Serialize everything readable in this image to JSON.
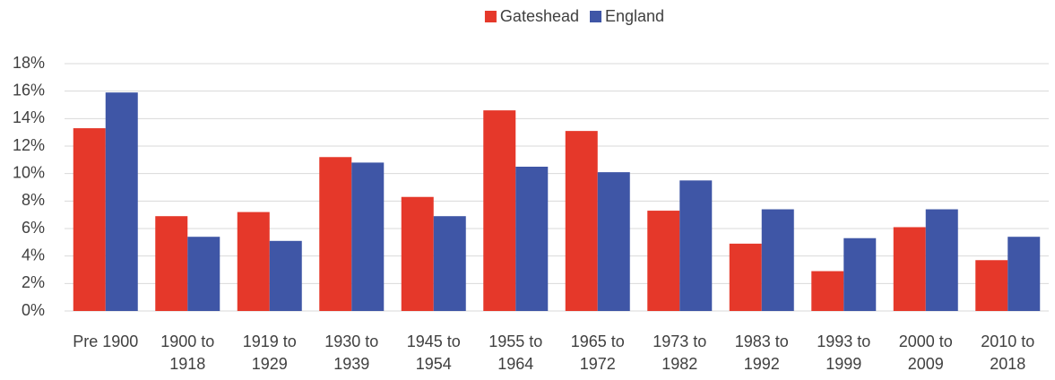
{
  "chart_data": {
    "type": "bar",
    "categories": [
      "Pre 1900",
      "1900 to 1918",
      "1919 to 1929",
      "1930 to 1939",
      "1945 to 1954",
      "1955 to 1964",
      "1965 to 1972",
      "1973 to 1982",
      "1983 to 1992",
      "1993 to 1999",
      "2000 to 2009",
      "2010 to 2018"
    ],
    "series": [
      {
        "name": "Gateshead",
        "color": "#e5382a",
        "values": [
          13.3,
          6.9,
          7.2,
          11.2,
          8.3,
          14.6,
          13.1,
          7.3,
          4.9,
          2.9,
          6.1,
          3.7
        ]
      },
      {
        "name": "England",
        "color": "#3f56a6",
        "values": [
          15.9,
          5.4,
          5.1,
          10.8,
          6.9,
          10.5,
          10.1,
          9.5,
          7.4,
          5.3,
          7.4,
          5.4
        ]
      }
    ],
    "ylim": [
      0,
      18
    ],
    "yticks": [
      {
        "value": 0,
        "label": "0%"
      },
      {
        "value": 2,
        "label": "2%"
      },
      {
        "value": 4,
        "label": "4%"
      },
      {
        "value": 6,
        "label": "6%"
      },
      {
        "value": 8,
        "label": "8%"
      },
      {
        "value": 10,
        "label": "10%"
      },
      {
        "value": 12,
        "label": "12%"
      },
      {
        "value": 14,
        "label": "14%"
      },
      {
        "value": 16,
        "label": "16%"
      },
      {
        "value": 18,
        "label": "18%"
      }
    ],
    "grid": true,
    "legend": "top"
  }
}
